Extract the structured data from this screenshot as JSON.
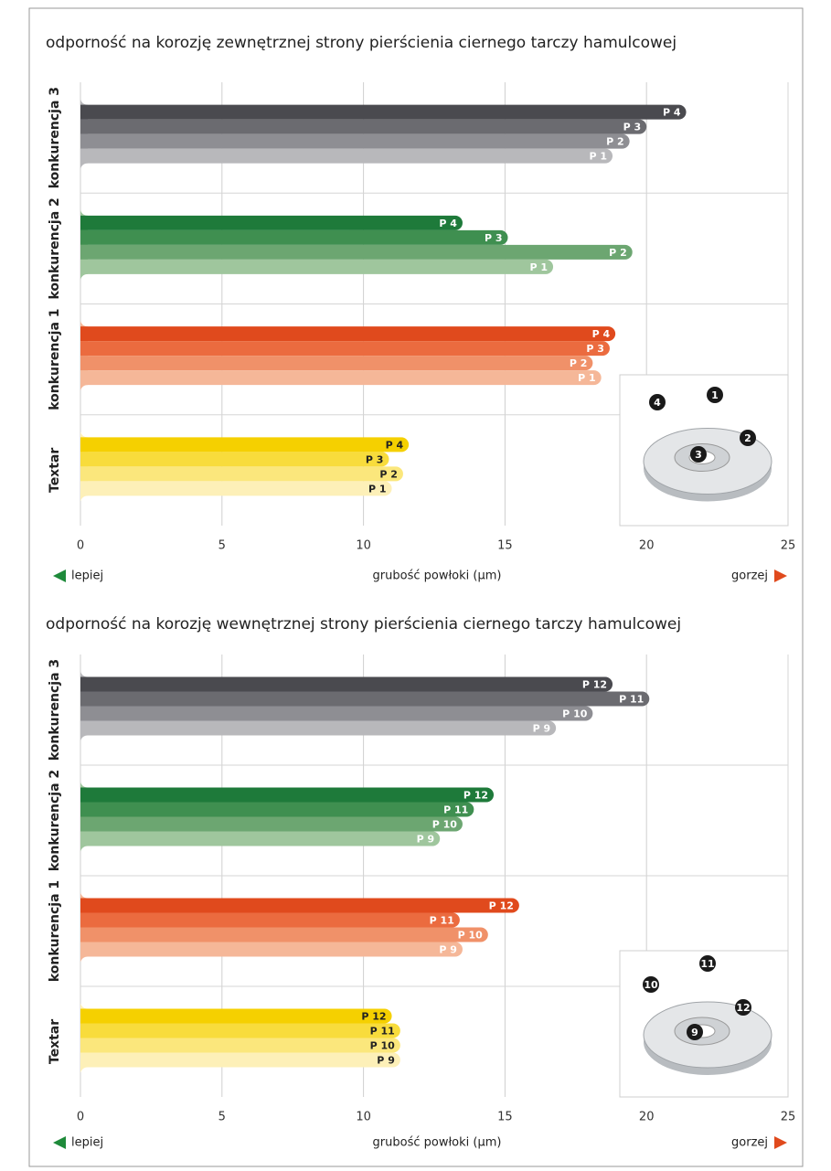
{
  "chart_data": [
    {
      "type": "bar",
      "orientation": "horizontal",
      "title": "odporność na korozję zewnętrznej strony pierścienia ciernego tarczy hamulcowej",
      "categories": [
        "konkurencja 3",
        "konkurencja 2",
        "konkurencja 1",
        "Textar"
      ],
      "series": [
        {
          "name": "P 4",
          "values": [
            21.4,
            13.5,
            18.9,
            11.6
          ]
        },
        {
          "name": "P 3",
          "values": [
            20.0,
            15.1,
            18.7,
            10.9
          ]
        },
        {
          "name": "P 2",
          "values": [
            19.4,
            19.5,
            18.1,
            11.4
          ]
        },
        {
          "name": "P 1",
          "values": [
            18.8,
            16.7,
            18.4,
            11.0
          ]
        }
      ],
      "group_colors": [
        [
          "#4a4a4f",
          "#6b6b70",
          "#8e8e93",
          "#b8b8bb"
        ],
        [
          "#1e7a3a",
          "#3f8f50",
          "#6ca671",
          "#9fc69d"
        ],
        [
          "#e04a1d",
          "#eb6b3f",
          "#f09169",
          "#f5b798"
        ],
        [
          "#f5d000",
          "#f8dc3c",
          "#fbe77c",
          "#fdf0b8"
        ]
      ],
      "label_colors": [
        "#ffffff",
        "#ffffff",
        "#ffffff",
        "#222222"
      ],
      "xlim": [
        0,
        25
      ],
      "xticks": [
        0,
        5,
        10,
        15,
        20,
        25
      ],
      "grid": true,
      "xlabel": "grubość powłoki (µm)",
      "better_label": "lepiej",
      "worse_label": "gorzej",
      "callouts": [
        "1",
        "2",
        "3",
        "4"
      ]
    },
    {
      "type": "bar",
      "orientation": "horizontal",
      "title": "odporność na korozję wewnętrznej strony pierścienia ciernego tarczy hamulcowej",
      "categories": [
        "konkurencja 3",
        "konkurencja 2",
        "konkurencja 1",
        "Textar"
      ],
      "series": [
        {
          "name": "P 12",
          "values": [
            18.8,
            14.6,
            15.5,
            11.0
          ]
        },
        {
          "name": "P 11",
          "values": [
            20.1,
            13.9,
            13.4,
            11.3
          ]
        },
        {
          "name": "P 10",
          "values": [
            18.1,
            13.5,
            14.4,
            11.3
          ]
        },
        {
          "name": "P 9",
          "values": [
            16.8,
            12.7,
            13.5,
            11.3
          ]
        }
      ],
      "group_colors": [
        [
          "#4a4a4f",
          "#6b6b70",
          "#8e8e93",
          "#b8b8bb"
        ],
        [
          "#1e7a3a",
          "#3f8f50",
          "#6ca671",
          "#9fc69d"
        ],
        [
          "#e04a1d",
          "#eb6b3f",
          "#f09169",
          "#f5b798"
        ],
        [
          "#f5d000",
          "#f8dc3c",
          "#fbe77c",
          "#fdf0b8"
        ]
      ],
      "label_colors": [
        "#ffffff",
        "#ffffff",
        "#ffffff",
        "#222222"
      ],
      "xlim": [
        0,
        25
      ],
      "xticks": [
        0,
        5,
        10,
        15,
        20,
        25
      ],
      "grid": true,
      "xlabel": "grubość powłoki (µm)",
      "better_label": "lepiej",
      "worse_label": "gorzej",
      "callouts": [
        "9",
        "10",
        "11",
        "12"
      ]
    }
  ]
}
